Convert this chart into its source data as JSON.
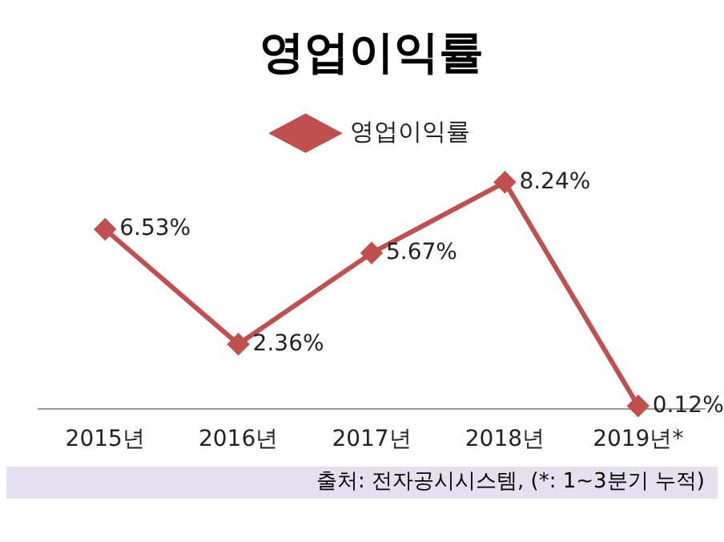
{
  "chart_data": {
    "type": "line",
    "title": "영업이익률",
    "categories": [
      "2015년",
      "2016년",
      "2017년",
      "2018년",
      "2019년*"
    ],
    "series": [
      {
        "name": "영업이익률",
        "color": "#c0504d",
        "values": [
          6.53,
          2.36,
          5.67,
          8.24,
          0.12
        ],
        "value_labels": [
          "6.53%",
          "2.36%",
          "5.67%",
          "8.24%",
          "0.12%"
        ]
      }
    ],
    "legend": "top",
    "marker": "diamond",
    "line_style": "solid",
    "grid": false,
    "annotations": [
      "출처: 전자공시시스템, (*: 1~3분기 누적)"
    ]
  }
}
